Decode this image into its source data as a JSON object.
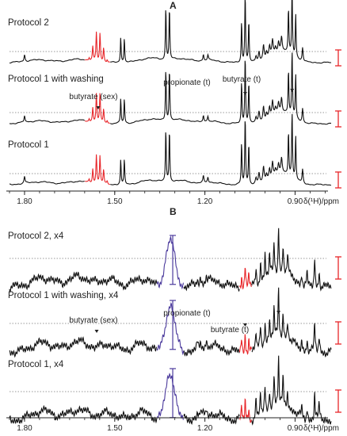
{
  "chart_data": [
    {
      "type": "line",
      "panel_label": "A",
      "xlabel": "δ(¹H)/ppm",
      "xlim": [
        1.85,
        0.78
      ],
      "x_reversed": true,
      "tick_labels": [
        "1.80",
        "1.50",
        "1.20",
        "0.90"
      ],
      "tick_values": [
        1.8,
        1.5,
        1.2,
        0.9
      ],
      "series": [
        {
          "name": "Protocol 2"
        },
        {
          "name": "Protocol 1 with washing",
          "annotations": [
            "butyrate (sex)",
            "propionate (t)",
            "butyrate (t)"
          ]
        },
        {
          "name": "Protocol 1"
        }
      ],
      "peaks_ppm": [
        1.56,
        1.55,
        1.54,
        1.53,
        1.48,
        1.47,
        1.32,
        1.31,
        1.06,
        1.05,
        1.04,
        0.91,
        0.9,
        0.89
      ],
      "highlight_color": "#e8262a"
    },
    {
      "type": "line",
      "panel_label": "B",
      "xlabel": "δ(¹H)/ppm",
      "xlim": [
        1.85,
        0.78
      ],
      "x_reversed": true,
      "tick_labels": [
        "1.80",
        "1.50",
        "1.20",
        "0.90"
      ],
      "tick_values": [
        1.8,
        1.5,
        1.2,
        0.9
      ],
      "series": [
        {
          "name": "Protocol 2, x4"
        },
        {
          "name": "Protocol 1 with washing, x4",
          "annotations": [
            "butyrate (sex)",
            "propionate (t)",
            "butyrate (t)"
          ]
        },
        {
          "name": "Protocol 1, x4"
        }
      ],
      "highlight_color": "#e8262a",
      "water_color": "#4b3a9c"
    }
  ]
}
